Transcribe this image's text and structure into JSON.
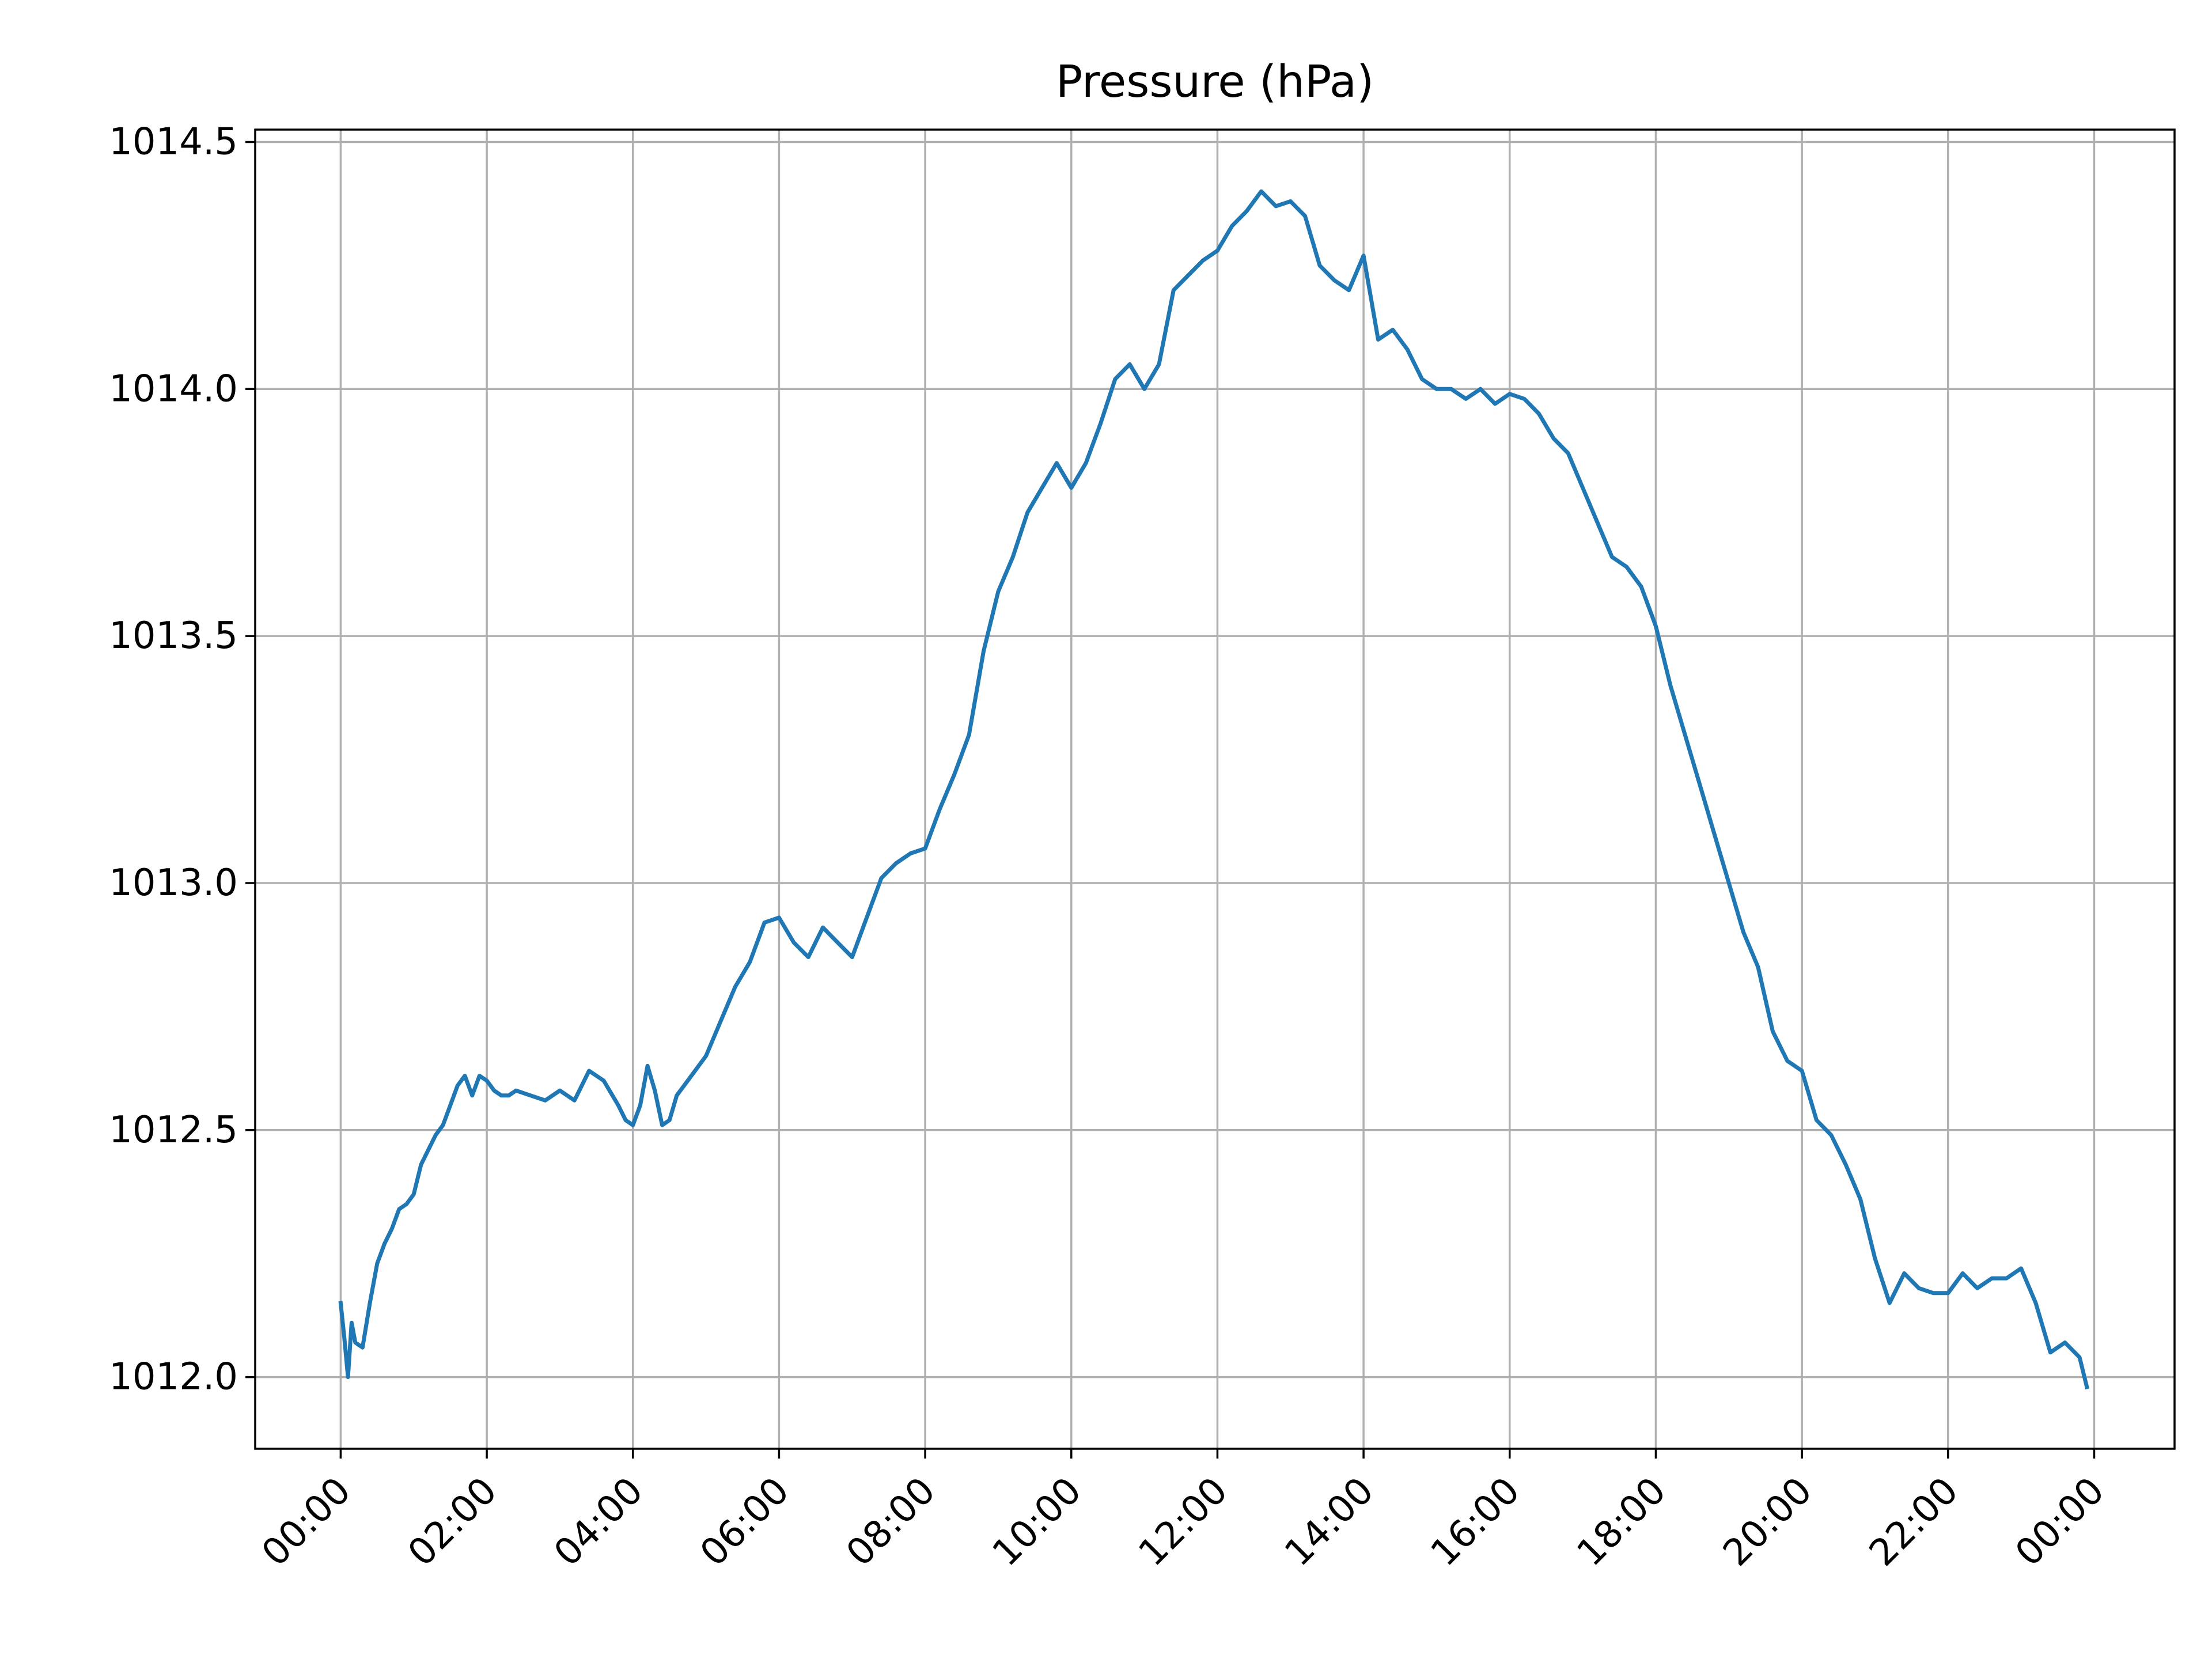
{
  "chart_data": {
    "type": "line",
    "title": "Pressure (hPa)",
    "xlabel": "",
    "ylabel": "",
    "x_tick_labels": [
      "00:00",
      "02:00",
      "04:00",
      "06:00",
      "08:00",
      "10:00",
      "12:00",
      "14:00",
      "16:00",
      "18:00",
      "20:00",
      "22:00",
      "00:00"
    ],
    "x_tick_hours": [
      0,
      2,
      4,
      6,
      8,
      10,
      12,
      14,
      16,
      18,
      20,
      22,
      24
    ],
    "y_tick_labels": [
      "1012.0",
      "1012.5",
      "1013.0",
      "1013.5",
      "1014.0",
      "1014.5"
    ],
    "y_ticks": [
      1012.0,
      1012.5,
      1013.0,
      1013.5,
      1014.0,
      1014.5
    ],
    "xlim_hours": [
      -1.17,
      25.1
    ],
    "ylim": [
      1011.855,
      1014.525
    ],
    "grid": true,
    "legend": false,
    "colors": {
      "line": "#1f77b4",
      "grid": "#b0b0b0",
      "axes": "#000000"
    },
    "series": [
      {
        "x_hours": [
          0.0,
          0.05,
          0.1,
          0.15,
          0.2,
          0.3,
          0.4,
          0.5,
          0.6,
          0.7,
          0.8,
          0.9,
          1.0,
          1.1,
          1.2,
          1.3,
          1.4,
          1.5,
          1.6,
          1.7,
          1.8,
          1.9,
          2.0,
          2.1,
          2.2,
          2.3,
          2.4,
          2.6,
          2.8,
          3.0,
          3.2,
          3.4,
          3.6,
          3.8,
          3.9,
          4.0,
          4.1,
          4.2,
          4.3,
          4.4,
          4.5,
          4.6,
          4.8,
          5.0,
          5.2,
          5.4,
          5.6,
          5.8,
          6.0,
          6.2,
          6.4,
          6.6,
          6.8,
          7.0,
          7.2,
          7.4,
          7.6,
          7.8,
          8.0,
          8.2,
          8.4,
          8.6,
          8.8,
          9.0,
          9.2,
          9.4,
          9.6,
          9.8,
          10.0,
          10.2,
          10.4,
          10.6,
          10.8,
          11.0,
          11.2,
          11.4,
          11.6,
          11.8,
          12.0,
          12.2,
          12.4,
          12.6,
          12.8,
          13.0,
          13.2,
          13.4,
          13.6,
          13.8,
          14.0,
          14.2,
          14.4,
          14.6,
          14.8,
          15.0,
          15.2,
          15.4,
          15.6,
          15.8,
          16.0,
          16.2,
          16.4,
          16.6,
          16.8,
          17.0,
          17.2,
          17.4,
          17.6,
          17.8,
          18.0,
          18.2,
          18.4,
          18.6,
          18.8,
          19.0,
          19.2,
          19.4,
          19.6,
          19.8,
          20.0,
          20.2,
          20.4,
          20.6,
          20.8,
          21.0,
          21.2,
          21.4,
          21.6,
          21.8,
          22.0,
          22.2,
          22.4,
          22.6,
          22.8,
          23.0,
          23.2,
          23.4,
          23.6,
          23.8,
          23.9
        ],
        "y": [
          1012.15,
          1012.08,
          1012.0,
          1012.11,
          1012.07,
          1012.06,
          1012.15,
          1012.23,
          1012.27,
          1012.3,
          1012.34,
          1012.35,
          1012.37,
          1012.43,
          1012.46,
          1012.49,
          1012.51,
          1012.55,
          1012.59,
          1012.61,
          1012.57,
          1012.61,
          1012.6,
          1012.58,
          1012.57,
          1012.57,
          1012.58,
          1012.57,
          1012.56,
          1012.58,
          1012.56,
          1012.62,
          1012.6,
          1012.55,
          1012.52,
          1012.51,
          1012.55,
          1012.63,
          1012.58,
          1012.51,
          1012.52,
          1012.57,
          1012.61,
          1012.65,
          1012.72,
          1012.79,
          1012.84,
          1012.92,
          1012.93,
          1012.88,
          1012.85,
          1012.91,
          1012.88,
          1012.85,
          1012.93,
          1013.01,
          1013.04,
          1013.06,
          1013.07,
          1013.15,
          1013.22,
          1013.3,
          1013.47,
          1013.59,
          1013.66,
          1013.75,
          1013.8,
          1013.85,
          1013.8,
          1013.85,
          1013.93,
          1014.02,
          1014.05,
          1014.0,
          1014.05,
          1014.2,
          1014.23,
          1014.26,
          1014.28,
          1014.33,
          1014.36,
          1014.4,
          1014.37,
          1014.38,
          1014.35,
          1014.25,
          1014.22,
          1014.2,
          1014.27,
          1014.1,
          1014.12,
          1014.08,
          1014.02,
          1014.0,
          1014.0,
          1013.98,
          1014.0,
          1013.97,
          1013.99,
          1013.98,
          1013.95,
          1013.9,
          1013.87,
          1013.8,
          1013.73,
          1013.66,
          1013.64,
          1013.6,
          1013.52,
          1013.4,
          1013.3,
          1013.2,
          1013.1,
          1013.0,
          1012.9,
          1012.83,
          1012.7,
          1012.64,
          1012.62,
          1012.52,
          1012.49,
          1012.43,
          1012.36,
          1012.24,
          1012.15,
          1012.21,
          1012.18,
          1012.17,
          1012.17,
          1012.21,
          1012.18,
          1012.2,
          1012.2,
          1012.22,
          1012.15,
          1012.05,
          1012.07,
          1012.04,
          1011.98
        ]
      }
    ]
  }
}
